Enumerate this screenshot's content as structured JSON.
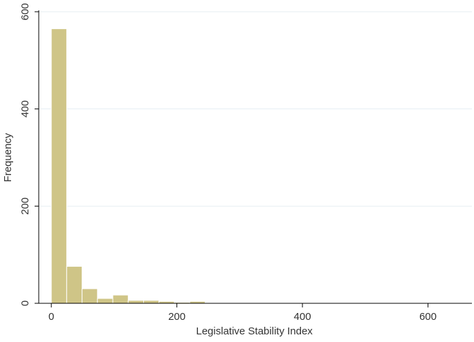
{
  "chart_data": {
    "type": "bar",
    "title": "",
    "xlabel": "Legislative Stability Index",
    "ylabel": "Frequency",
    "xlim": [
      -20,
      670
    ],
    "ylim": [
      0,
      600
    ],
    "x_ticks": [
      0,
      200,
      400,
      600
    ],
    "y_ticks": [
      0,
      200,
      400,
      600
    ],
    "grid": true,
    "bin_width": 24.5,
    "bin_start": 0,
    "values": [
      565,
      76,
      30,
      10,
      17,
      6,
      6,
      4,
      2,
      4,
      1,
      1,
      0,
      0,
      1,
      1,
      0,
      1,
      1,
      0,
      0,
      0,
      0,
      0,
      0,
      0,
      1
    ],
    "colors": {
      "bar_fill": "#cfc587",
      "bar_stroke": "#ffffff",
      "grid": "#e6eef2",
      "axis": "#000000"
    }
  }
}
